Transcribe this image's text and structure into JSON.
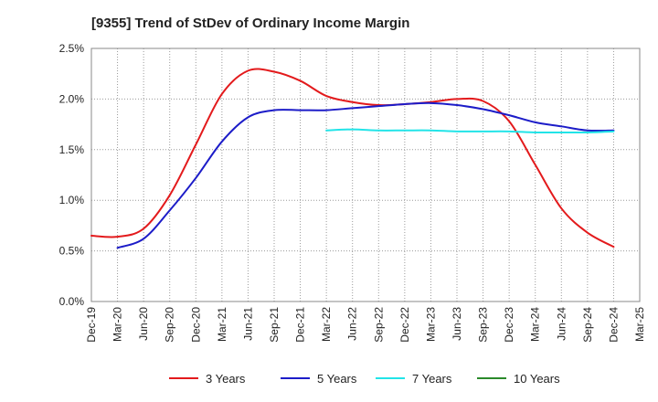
{
  "chart_data": {
    "type": "line",
    "title": "[9355]  Trend of StDev of Ordinary Income Margin",
    "xlabel": "",
    "ylabel": "",
    "ylim": [
      0,
      2.5
    ],
    "y_ticks": [
      0,
      0.5,
      1.0,
      1.5,
      2.0,
      2.5
    ],
    "y_tick_labels": [
      "0.0%",
      "0.5%",
      "1.0%",
      "1.5%",
      "2.0%",
      "2.5%"
    ],
    "x_tick_labels": [
      "Dec-19",
      "Mar-20",
      "Jun-20",
      "Sep-20",
      "Dec-20",
      "Mar-21",
      "Jun-21",
      "Sep-21",
      "Dec-21",
      "Mar-22",
      "Jun-22",
      "Sep-22",
      "Dec-22",
      "Mar-23",
      "Jun-23",
      "Sep-23",
      "Dec-23",
      "Mar-24",
      "Jun-24",
      "Sep-24",
      "Dec-24",
      "Mar-25"
    ],
    "grid": true,
    "legend_position": "bottom",
    "series": [
      {
        "name": "3 Years",
        "color": "#e31a1c",
        "values": [
          0.65,
          0.64,
          0.72,
          1.05,
          1.55,
          2.05,
          2.28,
          2.27,
          2.18,
          2.03,
          1.97,
          1.94,
          1.95,
          1.97,
          2.0,
          1.98,
          1.78,
          1.35,
          0.92,
          0.68,
          0.54,
          null
        ]
      },
      {
        "name": "5 Years",
        "color": "#1c1cc8",
        "values": [
          null,
          0.53,
          0.62,
          0.9,
          1.22,
          1.58,
          1.82,
          1.89,
          1.89,
          1.89,
          1.91,
          1.93,
          1.95,
          1.96,
          1.94,
          1.9,
          1.84,
          1.77,
          1.73,
          1.69,
          1.69,
          null
        ]
      },
      {
        "name": "7 Years",
        "color": "#22e4e8",
        "values": [
          null,
          null,
          null,
          null,
          null,
          null,
          null,
          null,
          null,
          1.69,
          1.7,
          1.69,
          1.69,
          1.69,
          1.68,
          1.68,
          1.68,
          1.67,
          1.67,
          1.67,
          1.68,
          null
        ]
      },
      {
        "name": "10 Years",
        "color": "#2a8a2a",
        "values": [
          null,
          null,
          null,
          null,
          null,
          null,
          null,
          null,
          null,
          null,
          null,
          null,
          null,
          null,
          null,
          null,
          null,
          null,
          null,
          null,
          null,
          null
        ]
      }
    ]
  }
}
